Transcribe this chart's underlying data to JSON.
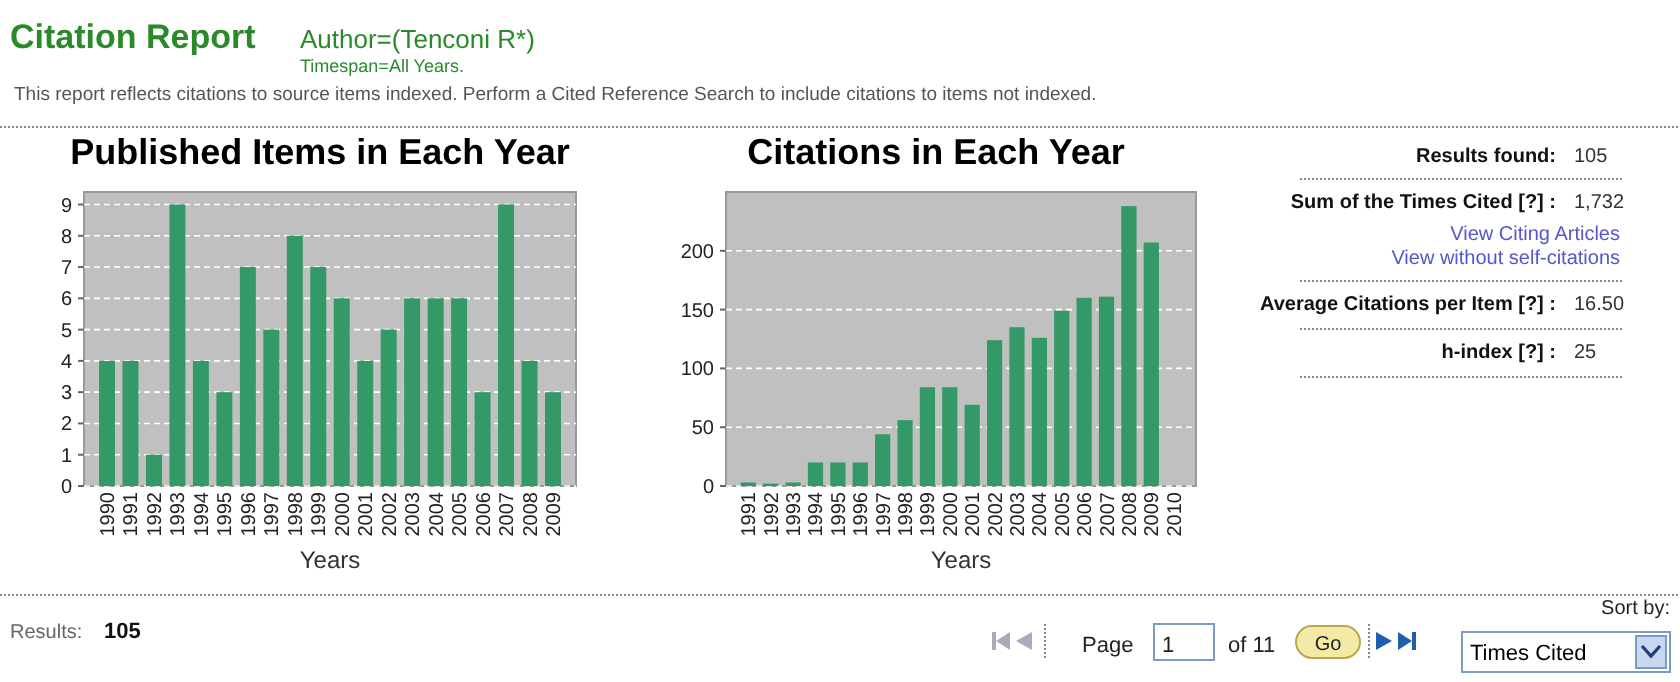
{
  "chart_data": [
    {
      "type": "other",
      "title": "Citation Report",
      "subtitle": "Author=(Tenconi R*)",
      "annotations": [
        "Timespan=All Years.",
        "This report reflects citations to source items indexed. Perform a Cited Reference Search to include citations to items not indexed.",
        "Results found:",
        "105",
        "Sum of the Times Cited [?] :",
        "1,732",
        "View Citing Articles",
        "View without self-citations",
        "Average Citations per Item [?] :",
        "16.50",
        "h-index [?] :",
        "25",
        "Results:",
        "105",
        "Page",
        "1",
        "of 11",
        "Go",
        "Sort by:",
        "Times Cited"
      ]
    },
    {
      "type": "bar",
      "title": "Published Items in Each Year",
      "xlabel": "Years",
      "categories": [
        "1990",
        "1991",
        "1992",
        "1993",
        "1994",
        "1995",
        "1996",
        "1997",
        "1998",
        "1999",
        "2000",
        "2001",
        "2002",
        "2003",
        "2004",
        "2005",
        "2006",
        "2007",
        "2008",
        "2009"
      ],
      "values": [
        4,
        4,
        1,
        9,
        4,
        3,
        7,
        5,
        8,
        7,
        6,
        4,
        5,
        6,
        6,
        6,
        3,
        9,
        4,
        3
      ],
      "color": "#339966",
      "ylim": [
        0,
        9.4
      ],
      "yticks": [
        0,
        1,
        2,
        3,
        4,
        5,
        6,
        7,
        8,
        9
      ],
      "grid": "y"
    },
    {
      "type": "bar",
      "title": "Citations in Each Year",
      "xlabel": "Years",
      "categories": [
        "1991",
        "1992",
        "1993",
        "1994",
        "1995",
        "1996",
        "1997",
        "1998",
        "1999",
        "2000",
        "2001",
        "2002",
        "2003",
        "2004",
        "2005",
        "2006",
        "2007",
        "2008",
        "2009",
        "2010"
      ],
      "values": [
        3,
        2,
        3,
        20,
        20,
        20,
        44,
        56,
        84,
        84,
        69,
        124,
        135,
        126,
        149,
        160,
        161,
        238,
        207,
        0
      ],
      "color": "#339966",
      "ylim": [
        0,
        250
      ],
      "yticks": [
        0,
        50,
        100,
        150,
        200
      ],
      "grid": "y"
    }
  ]
}
